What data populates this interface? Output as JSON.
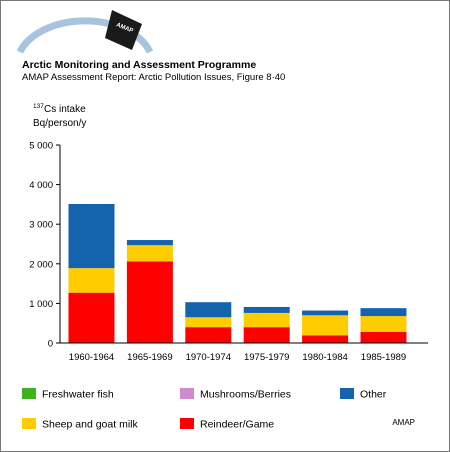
{
  "header": {
    "logo_text": "AMAP",
    "org": "Arctic Monitoring and Assessment Programme",
    "report": "AMAP Assessment Report: Arctic Pollution Issues, Figure 8·40"
  },
  "footer": {
    "brand": "AMAP"
  },
  "colors": {
    "freshwater": "#3fb11c",
    "mushrooms": "#cf89cc",
    "other": "#1363ad",
    "sheep": "#ffcc00",
    "reindeer": "#ff0000",
    "logo_arc": "#a8c3dd"
  },
  "chart_data": {
    "type": "bar",
    "stacked": true,
    "ylabel_sup": "137",
    "ylabel_line1": "Cs intake",
    "ylabel_line2": "Bq/person/y",
    "ylim": [
      0,
      5000
    ],
    "yticks": [
      "0",
      "1 000",
      "2 000",
      "3 000",
      "4 000",
      "5 000"
    ],
    "ytick_values": [
      0,
      1000,
      2000,
      3000,
      4000,
      5000
    ],
    "categories": [
      "1960-1964",
      "1965-1969",
      "1970-1974",
      "1975-1979",
      "1980-1984",
      "1985-1989"
    ],
    "series": [
      {
        "name": "Reindeer/Game",
        "key": "reindeer",
        "values": [
          1270,
          2060,
          400,
          400,
          190,
          280
        ]
      },
      {
        "name": "Sheep and goat milk",
        "key": "sheep",
        "values": [
          620,
          410,
          250,
          360,
          510,
          400
        ]
      },
      {
        "name": "Mushrooms/Berries",
        "key": "mushrooms",
        "values": [
          0,
          0,
          0,
          0,
          0,
          0
        ]
      },
      {
        "name": "Freshwater fish",
        "key": "freshwater",
        "values": [
          0,
          0,
          0,
          0,
          0,
          0
        ]
      },
      {
        "name": "Other",
        "key": "other",
        "values": [
          1620,
          130,
          380,
          150,
          120,
          200
        ]
      }
    ],
    "legend": {
      "placement": "bottom",
      "items": [
        {
          "key": "freshwater",
          "label": "Freshwater fish"
        },
        {
          "key": "mushrooms",
          "label": "Mushrooms/Berries"
        },
        {
          "key": "other",
          "label": "Other"
        },
        {
          "key": "sheep",
          "label": "Sheep and goat milk"
        },
        {
          "key": "reindeer",
          "label": "Reindeer/Game"
        }
      ]
    }
  }
}
